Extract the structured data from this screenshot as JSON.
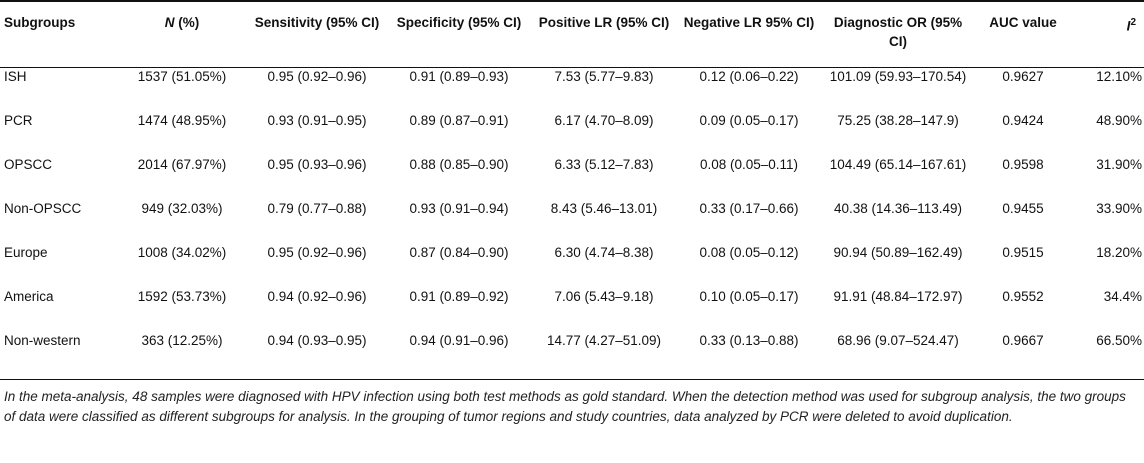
{
  "table": {
    "headers": [
      {
        "text": "Subgroups"
      },
      {
        "italic": "N",
        "text": " (%)"
      },
      {
        "text": "Sensitivity (95% CI)"
      },
      {
        "text": "Specificity (95% CI)"
      },
      {
        "text": "Positive LR (95% CI)"
      },
      {
        "text": "Negative LR 95% CI)"
      },
      {
        "text": "Diagnostic OR (95% CI)"
      },
      {
        "text": "AUC value"
      },
      {
        "italic": "I",
        "sup": "2"
      }
    ],
    "rows": [
      [
        "ISH",
        "1537 (51.05%)",
        "0.95 (0.92–0.96)",
        "0.91 (0.89–0.93)",
        "7.53 (5.77–9.83)",
        "0.12 (0.06–0.22)",
        "101.09 (59.93–170.54)",
        "0.9627",
        "12.10%"
      ],
      [
        "PCR",
        "1474 (48.95%)",
        "0.93 (0.91–0.95)",
        "0.89 (0.87–0.91)",
        "6.17 (4.70–8.09)",
        "0.09 (0.05–0.17)",
        "75.25 (38.28–147.9)",
        "0.9424",
        "48.90%"
      ],
      [
        "OPSCC",
        "2014 (67.97%)",
        "0.95 (0.93–0.96)",
        "0.88 (0.85–0.90)",
        "6.33 (5.12–7.83)",
        "0.08 (0.05–0.11)",
        "104.49 (65.14–167.61)",
        "0.9598",
        "31.90%"
      ],
      [
        "Non-OPSCC",
        "949 (32.03%)",
        "0.79 (0.77–0.88)",
        "0.93 (0.91–0.94)",
        "8.43 (5.46–13.01)",
        "0.33 (0.17–0.66)",
        "40.38 (14.36–113.49)",
        "0.9455",
        "33.90%"
      ],
      [
        "Europe",
        "1008 (34.02%)",
        "0.95 (0.92–0.96)",
        "0.87 (0.84–0.90)",
        "6.30 (4.74–8.38)",
        "0.08 (0.05–0.12)",
        "90.94 (50.89–162.49)",
        "0.9515",
        "18.20%"
      ],
      [
        "America",
        "1592 (53.73%)",
        "0.94 (0.92–0.96)",
        "0.91 (0.89–0.92)",
        "7.06 (5.43–9.18)",
        "0.10 (0.05–0.17)",
        "91.91 (48.84–172.97)",
        "0.9552",
        "34.4%"
      ],
      [
        "Non-western",
        "363 (12.25%)",
        "0.94 (0.93–0.95)",
        "0.94 (0.91–0.96)",
        "14.77 (4.27–51.09)",
        "0.33 (0.13–0.88)",
        "68.96 (9.07–524.47)",
        "0.9667",
        "66.50%"
      ]
    ]
  },
  "footnote": "In the meta-analysis, 48 samples were diagnosed with HPV infection using both test methods as gold standard. When the detection method was used for subgroup analysis, the two groups of data were classified as different subgroups for analysis. In the grouping of tumor regions and study countries, data analyzed by PCR were deleted to avoid duplication."
}
